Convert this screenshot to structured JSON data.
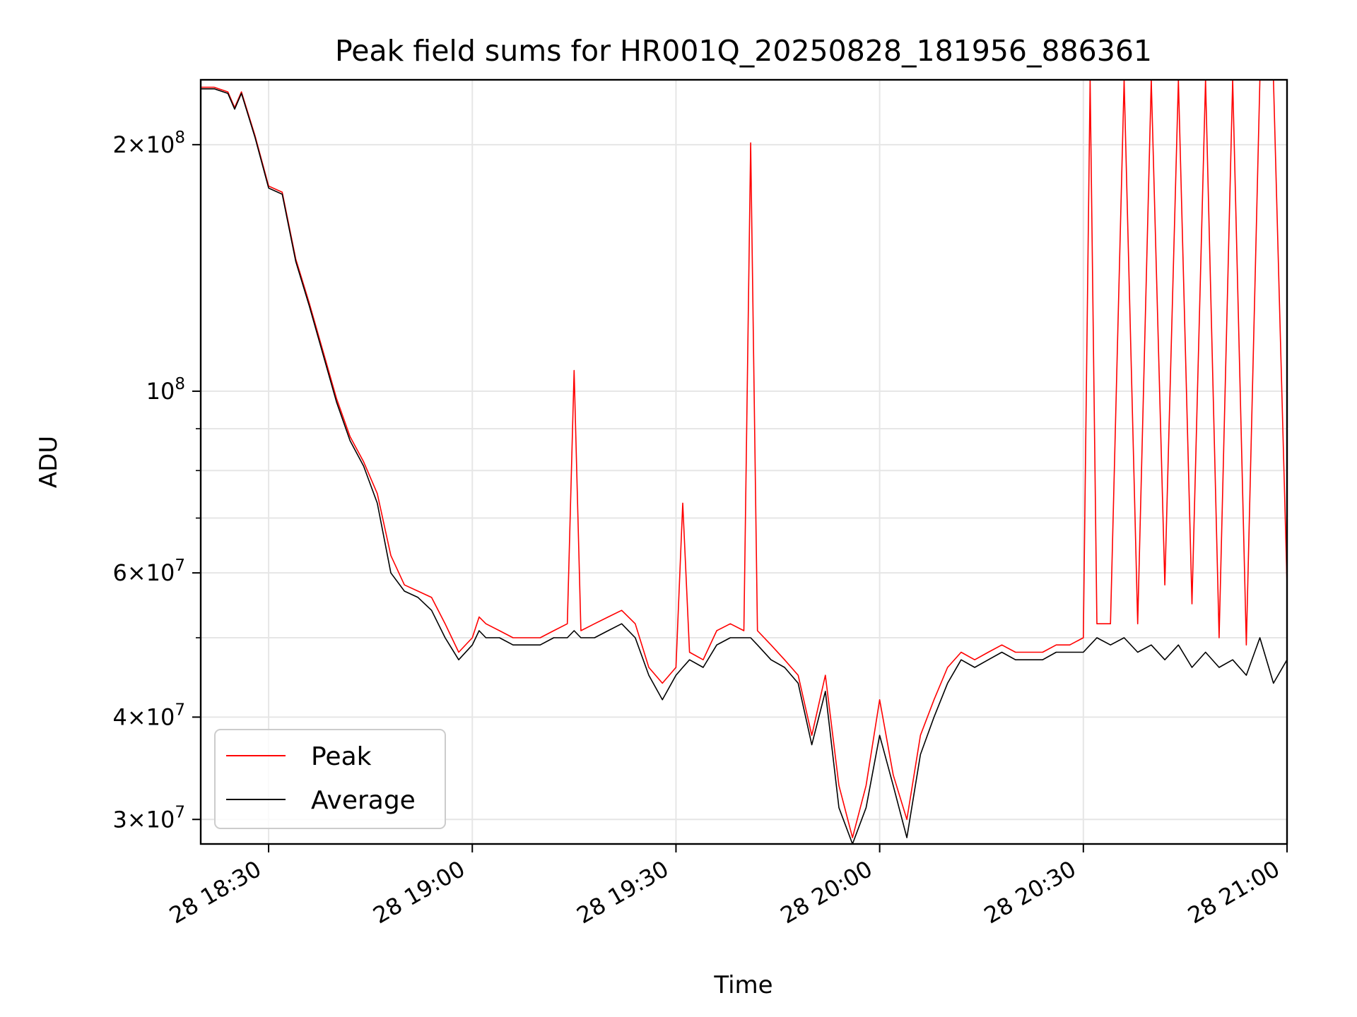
{
  "chart_data": {
    "type": "line",
    "title": "Peak field sums for HR001Q_20250828_181956_886361",
    "xlabel": "Time",
    "ylabel": "ADU",
    "yscale": "log",
    "ylim": [
      28000000,
      240000000
    ],
    "xlim": [
      "2025-08-28 18:20",
      "2025-08-28 21:00"
    ],
    "grid": true,
    "legend_position": "lower-left",
    "x_ticks": [
      {
        "t": "2025-08-28 18:30",
        "label": "28 18:30"
      },
      {
        "t": "2025-08-28 19:00",
        "label": "28 19:00"
      },
      {
        "t": "2025-08-28 19:30",
        "label": "28 19:30"
      },
      {
        "t": "2025-08-28 20:00",
        "label": "28 20:00"
      },
      {
        "t": "2025-08-28 20:30",
        "label": "28 20:30"
      },
      {
        "t": "2025-08-28 21:00",
        "label": "28 21:00"
      }
    ],
    "y_major_ticks": [
      {
        "v": 30000000,
        "mant": "3",
        "exp": "7"
      },
      {
        "v": 40000000,
        "mant": "4",
        "exp": "7"
      },
      {
        "v": 60000000,
        "mant": "6",
        "exp": "7"
      },
      {
        "v": 100000000,
        "mant": "",
        "exp": "8"
      },
      {
        "v": 200000000,
        "mant": "2",
        "exp": "8"
      }
    ],
    "y_minor_ticks": [
      50000000,
      70000000,
      80000000,
      90000000
    ],
    "series": [
      {
        "name": "Peak",
        "color": "#ff0000",
        "x": [
          "2025-08-28 18:20",
          "2025-08-28 18:22",
          "2025-08-28 18:24",
          "2025-08-28 18:25",
          "2025-08-28 18:26",
          "2025-08-28 18:28",
          "2025-08-28 18:30",
          "2025-08-28 18:32",
          "2025-08-28 18:34",
          "2025-08-28 18:36",
          "2025-08-28 18:38",
          "2025-08-28 18:40",
          "2025-08-28 18:42",
          "2025-08-28 18:44",
          "2025-08-28 18:46",
          "2025-08-28 18:48",
          "2025-08-28 18:50",
          "2025-08-28 18:52",
          "2025-08-28 18:54",
          "2025-08-28 18:56",
          "2025-08-28 18:58",
          "2025-08-28 19:00",
          "2025-08-28 19:01",
          "2025-08-28 19:02",
          "2025-08-28 19:04",
          "2025-08-28 19:06",
          "2025-08-28 19:08",
          "2025-08-28 19:10",
          "2025-08-28 19:12",
          "2025-08-28 19:14",
          "2025-08-28 19:15",
          "2025-08-28 19:16",
          "2025-08-28 19:18",
          "2025-08-28 19:20",
          "2025-08-28 19:22",
          "2025-08-28 19:24",
          "2025-08-28 19:26",
          "2025-08-28 19:28",
          "2025-08-28 19:30",
          "2025-08-28 19:31",
          "2025-08-28 19:32",
          "2025-08-28 19:34",
          "2025-08-28 19:36",
          "2025-08-28 19:38",
          "2025-08-28 19:40",
          "2025-08-28 19:41",
          "2025-08-28 19:42",
          "2025-08-28 19:44",
          "2025-08-28 19:46",
          "2025-08-28 19:48",
          "2025-08-28 19:50",
          "2025-08-28 19:52",
          "2025-08-28 19:54",
          "2025-08-28 19:56",
          "2025-08-28 19:58",
          "2025-08-28 20:00",
          "2025-08-28 20:02",
          "2025-08-28 20:04",
          "2025-08-28 20:06",
          "2025-08-28 20:08",
          "2025-08-28 20:10",
          "2025-08-28 20:12",
          "2025-08-28 20:14",
          "2025-08-28 20:16",
          "2025-08-28 20:18",
          "2025-08-28 20:20",
          "2025-08-28 20:22",
          "2025-08-28 20:24",
          "2025-08-28 20:26",
          "2025-08-28 20:28",
          "2025-08-28 20:30",
          "2025-08-28 20:31",
          "2025-08-28 20:32",
          "2025-08-28 20:34",
          "2025-08-28 20:36",
          "2025-08-28 20:38",
          "2025-08-28 20:40",
          "2025-08-28 20:42",
          "2025-08-28 20:44",
          "2025-08-28 20:46",
          "2025-08-28 20:48",
          "2025-08-28 20:50",
          "2025-08-28 20:52",
          "2025-08-28 20:54",
          "2025-08-28 20:56",
          "2025-08-28 20:58",
          "2025-08-28 21:00"
        ],
        "y": [
          235000000,
          235000000,
          232000000,
          222000000,
          232000000,
          205000000,
          178000000,
          175000000,
          145000000,
          128000000,
          112000000,
          98000000,
          88000000,
          82000000,
          75000000,
          63000000,
          58000000,
          57000000,
          56000000,
          52000000,
          48000000,
          50000000,
          53000000,
          52000000,
          51000000,
          50000000,
          50000000,
          50000000,
          51000000,
          52000000,
          106000000,
          51000000,
          52000000,
          53000000,
          54000000,
          52000000,
          46000000,
          44000000,
          46000000,
          73000000,
          48000000,
          47000000,
          51000000,
          52000000,
          51000000,
          201000000,
          51000000,
          49000000,
          47000000,
          45000000,
          38000000,
          45000000,
          33000000,
          28500000,
          33000000,
          42000000,
          34000000,
          30000000,
          38000000,
          42000000,
          46000000,
          48000000,
          47000000,
          48000000,
          49000000,
          48000000,
          48000000,
          48000000,
          49000000,
          49000000,
          50000000,
          240000000,
          52000000,
          52000000,
          240000000,
          52000000,
          240000000,
          58000000,
          240000000,
          55000000,
          240000000,
          50000000,
          240000000,
          49000000,
          240000000,
          240000000,
          58000000
        ]
      },
      {
        "name": "Average",
        "color": "#000000",
        "x": [
          "2025-08-28 18:20",
          "2025-08-28 18:22",
          "2025-08-28 18:24",
          "2025-08-28 18:25",
          "2025-08-28 18:26",
          "2025-08-28 18:28",
          "2025-08-28 18:30",
          "2025-08-28 18:32",
          "2025-08-28 18:34",
          "2025-08-28 18:36",
          "2025-08-28 18:38",
          "2025-08-28 18:40",
          "2025-08-28 18:42",
          "2025-08-28 18:44",
          "2025-08-28 18:46",
          "2025-08-28 18:48",
          "2025-08-28 18:50",
          "2025-08-28 18:52",
          "2025-08-28 18:54",
          "2025-08-28 18:56",
          "2025-08-28 18:58",
          "2025-08-28 19:00",
          "2025-08-28 19:01",
          "2025-08-28 19:02",
          "2025-08-28 19:04",
          "2025-08-28 19:06",
          "2025-08-28 19:08",
          "2025-08-28 19:10",
          "2025-08-28 19:12",
          "2025-08-28 19:14",
          "2025-08-28 19:15",
          "2025-08-28 19:16",
          "2025-08-28 19:18",
          "2025-08-28 19:20",
          "2025-08-28 19:22",
          "2025-08-28 19:24",
          "2025-08-28 19:26",
          "2025-08-28 19:28",
          "2025-08-28 19:30",
          "2025-08-28 19:31",
          "2025-08-28 19:32",
          "2025-08-28 19:34",
          "2025-08-28 19:36",
          "2025-08-28 19:38",
          "2025-08-28 19:40",
          "2025-08-28 19:41",
          "2025-08-28 19:42",
          "2025-08-28 19:44",
          "2025-08-28 19:46",
          "2025-08-28 19:48",
          "2025-08-28 19:50",
          "2025-08-28 19:52",
          "2025-08-28 19:54",
          "2025-08-28 19:56",
          "2025-08-28 19:58",
          "2025-08-28 20:00",
          "2025-08-28 20:02",
          "2025-08-28 20:04",
          "2025-08-28 20:06",
          "2025-08-28 20:08",
          "2025-08-28 20:10",
          "2025-08-28 20:12",
          "2025-08-28 20:14",
          "2025-08-28 20:16",
          "2025-08-28 20:18",
          "2025-08-28 20:20",
          "2025-08-28 20:22",
          "2025-08-28 20:24",
          "2025-08-28 20:26",
          "2025-08-28 20:28",
          "2025-08-28 20:30",
          "2025-08-28 20:31",
          "2025-08-28 20:32",
          "2025-08-28 20:34",
          "2025-08-28 20:36",
          "2025-08-28 20:38",
          "2025-08-28 20:40",
          "2025-08-28 20:42",
          "2025-08-28 20:44",
          "2025-08-28 20:46",
          "2025-08-28 20:48",
          "2025-08-28 20:50",
          "2025-08-28 20:52",
          "2025-08-28 20:54",
          "2025-08-28 20:56",
          "2025-08-28 20:58",
          "2025-08-28 21:00"
        ],
        "y": [
          234000000,
          234000000,
          231000000,
          221000000,
          231000000,
          204000000,
          177000000,
          174000000,
          144000000,
          127000000,
          111000000,
          97000000,
          87000000,
          81000000,
          73000000,
          60000000,
          57000000,
          56000000,
          54000000,
          50000000,
          47000000,
          49000000,
          51000000,
          50000000,
          50000000,
          49000000,
          49000000,
          49000000,
          50000000,
          50000000,
          51000000,
          50000000,
          50000000,
          51000000,
          52000000,
          50000000,
          45000000,
          42000000,
          45000000,
          46000000,
          47000000,
          46000000,
          49000000,
          50000000,
          50000000,
          50000000,
          49000000,
          47000000,
          46000000,
          44000000,
          37000000,
          43000000,
          31000000,
          28000000,
          31000000,
          38000000,
          33000000,
          28500000,
          36000000,
          40000000,
          44000000,
          47000000,
          46000000,
          47000000,
          48000000,
          47000000,
          47000000,
          47000000,
          48000000,
          48000000,
          48000000,
          49000000,
          50000000,
          49000000,
          50000000,
          48000000,
          49000000,
          47000000,
          49000000,
          46000000,
          48000000,
          46000000,
          47000000,
          45000000,
          50000000,
          44000000,
          47000000
        ]
      }
    ]
  }
}
